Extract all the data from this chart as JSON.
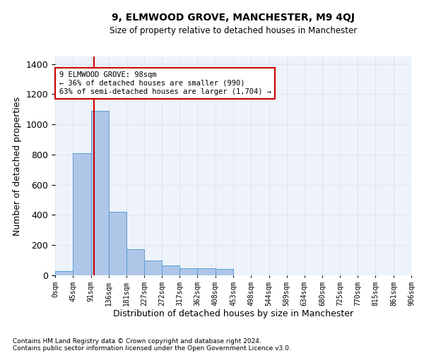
{
  "title": "9, ELMWOOD GROVE, MANCHESTER, M9 4QJ",
  "subtitle": "Size of property relative to detached houses in Manchester",
  "xlabel": "Distribution of detached houses by size in Manchester",
  "ylabel": "Number of detached properties",
  "footnote1": "Contains HM Land Registry data © Crown copyright and database right 2024.",
  "footnote2": "Contains public sector information licensed under the Open Government Licence v3.0.",
  "bin_edges": [
    0,
    45,
    91,
    136,
    181,
    227,
    272,
    317,
    362,
    408,
    453,
    498,
    544,
    589,
    634,
    680,
    725,
    770,
    815,
    861,
    906
  ],
  "bar_heights": [
    30,
    810,
    1090,
    420,
    175,
    100,
    65,
    45,
    45,
    40,
    0,
    0,
    0,
    0,
    0,
    0,
    0,
    0,
    0,
    0
  ],
  "bar_color": "#aec6e8",
  "bar_edge_color": "#5a9fd4",
  "vline_x": 98,
  "vline_color": "#cc0000",
  "ylim": [
    0,
    1450
  ],
  "xlim": [
    0,
    906
  ],
  "annotation_text": "9 ELMWOOD GROVE: 98sqm\n← 36% of detached houses are smaller (990)\n63% of semi-detached houses are larger (1,704) →",
  "annotation_box_color": "#ffffff",
  "annotation_box_edge": "#cc0000",
  "grid_color": "#dce6f0",
  "background_color": "#eef3fa",
  "tick_labels": [
    "0sqm",
    "45sqm",
    "91sqm",
    "136sqm",
    "181sqm",
    "227sqm",
    "272sqm",
    "317sqm",
    "362sqm",
    "408sqm",
    "453sqm",
    "498sqm",
    "544sqm",
    "589sqm",
    "634sqm",
    "680sqm",
    "725sqm",
    "770sqm",
    "815sqm",
    "861sqm",
    "906sqm"
  ],
  "yticks": [
    0,
    200,
    400,
    600,
    800,
    1000,
    1200,
    1400
  ]
}
